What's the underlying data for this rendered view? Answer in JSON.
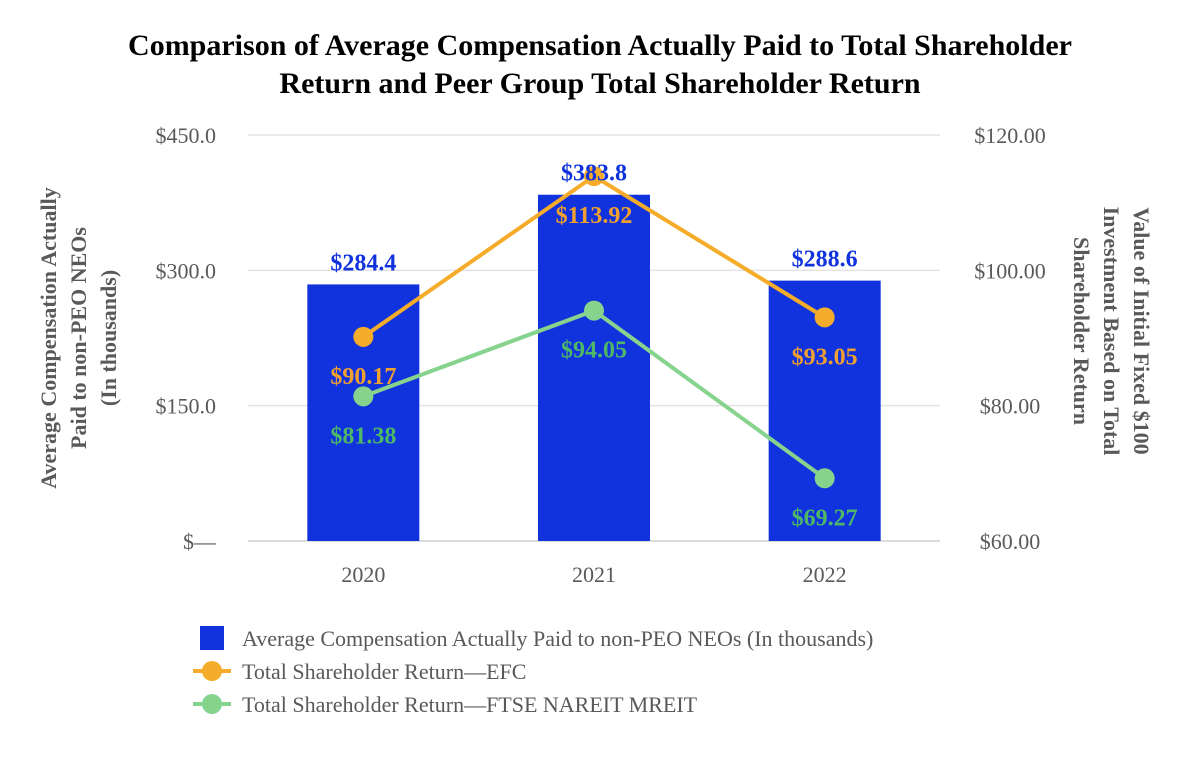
{
  "chart_data": {
    "type": "bar",
    "title_lines": [
      "Comparison of Average Compensation Actually Paid to Total Shareholder",
      "Return and Peer Group Total Shareholder Return"
    ],
    "categories": [
      "2020",
      "2021",
      "2022"
    ],
    "y_left": {
      "label_lines": [
        "Average Compensation Actually",
        "Paid to non-PEO NEOs",
        "(In thousands)"
      ],
      "lim": [
        0,
        450
      ],
      "ticks": [
        0,
        150,
        300,
        450
      ],
      "tick_labels": [
        "$—",
        "$150.0",
        "$300.0",
        "$450.0"
      ]
    },
    "y_right": {
      "label_lines": [
        "Value of Initial Fixed $100",
        "Investment Based on Total",
        "Shareholder Return"
      ],
      "lim": [
        60,
        120
      ],
      "ticks": [
        60,
        80,
        100,
        120
      ],
      "tick_labels": [
        "$60.00",
        "$80.00",
        "$100.00",
        "$120.00"
      ]
    },
    "series": [
      {
        "name": "Average Compensation Actually Paid to non-PEO NEOs (In thousands)",
        "kind": "bar",
        "axis": "left",
        "color": "#1133DD",
        "values": [
          284.4,
          383.8,
          288.6
        ],
        "labels": [
          "$284.4",
          "$383.8",
          "$288.6"
        ]
      },
      {
        "name": "Total Shareholder Return—EFC",
        "kind": "line",
        "axis": "right",
        "color": "#F5AC2A",
        "label_color": "#F0A030",
        "values": [
          90.17,
          113.92,
          93.05
        ],
        "labels": [
          "$90.17",
          "$113.92",
          "$93.05"
        ]
      },
      {
        "name": "Total Shareholder Return—FTSE NAREIT MREIT",
        "kind": "line",
        "axis": "right",
        "color": "#86D38E",
        "label_color": "#4FB867",
        "values": [
          81.38,
          94.05,
          69.27
        ],
        "labels": [
          "$81.38",
          "$94.05",
          "$69.27"
        ]
      }
    ],
    "grid": true,
    "legend_position": "bottom"
  }
}
